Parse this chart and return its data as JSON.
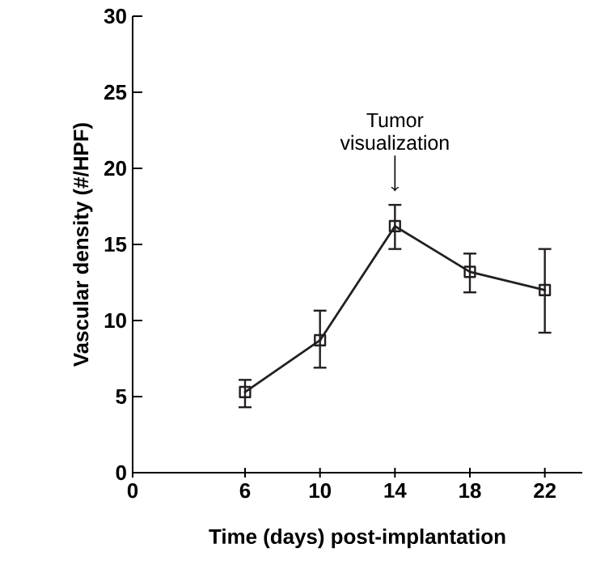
{
  "chart_data": {
    "type": "line",
    "xlabel": "Time  (days)  post-implantation",
    "ylabel": "Vascular  density  (#/HPF)",
    "x": [
      6,
      10,
      14,
      18,
      22
    ],
    "series": [
      {
        "color": "#231f20",
        "values": [
          5.3,
          8.7,
          16.2,
          13.2,
          12.0
        ],
        "errors": [
          [
            4.3,
            6.1
          ],
          [
            6.9,
            10.65
          ],
          [
            14.7,
            17.6
          ],
          [
            11.85,
            14.4
          ],
          [
            9.2,
            14.7
          ]
        ]
      }
    ],
    "xlim": [
      0,
      24
    ],
    "xticks": [
      0,
      6,
      10,
      14,
      18,
      22
    ],
    "ylim": [
      0,
      30
    ],
    "yticks": [
      0,
      5,
      10,
      15,
      20,
      25,
      30
    ],
    "marker": "square",
    "line_style": "solid",
    "grid": false,
    "annotations": [
      {
        "text": "Tumor visualization",
        "x": 14,
        "y": 18.5
      }
    ]
  }
}
